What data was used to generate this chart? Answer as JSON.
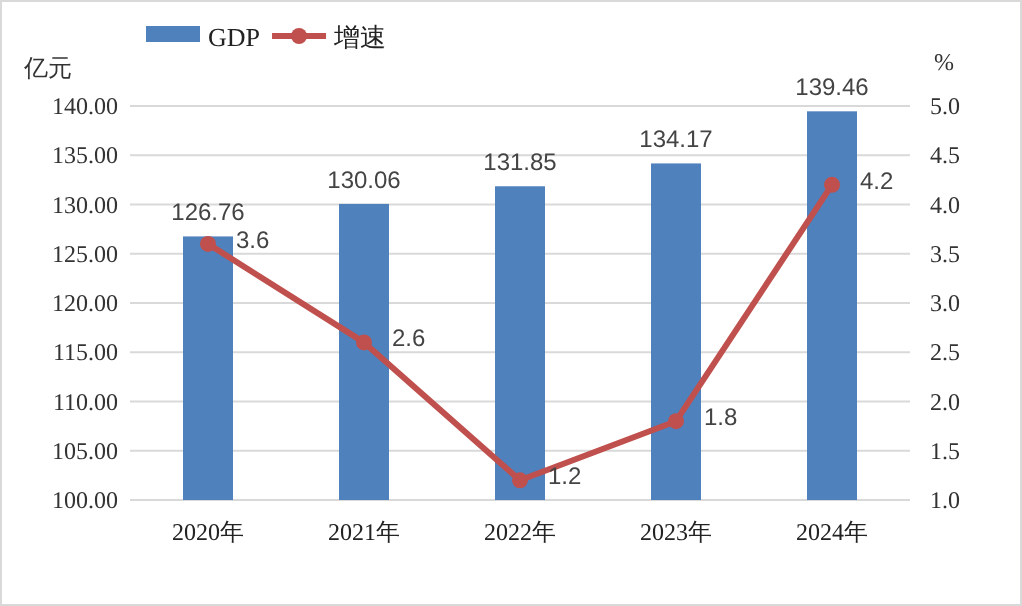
{
  "chart_data": {
    "type": "bar",
    "ylabel": "亿元",
    "y2label": "%",
    "categories": [
      "2020年",
      "2021年",
      "2022年",
      "2023年",
      "2024年"
    ],
    "series": [
      {
        "name": "GDP",
        "color": "#4f81bd",
        "values": [
          126.76,
          130.06,
          131.85,
          134.17,
          139.46
        ]
      },
      {
        "name": "增速",
        "type": "line",
        "axis": "y2",
        "color": "#c0504d",
        "marker": "circle",
        "values": [
          3.6,
          2.6,
          1.2,
          1.8,
          4.2
        ]
      }
    ],
    "data_labels": true,
    "legend": "top left",
    "grid": "y",
    "ylim": [
      100,
      140
    ],
    "yticks": [
      {
        "value": 100,
        "label": "100.00"
      },
      {
        "value": 105,
        "label": "105.00"
      },
      {
        "value": 110,
        "label": "110.00"
      },
      {
        "value": 115,
        "label": "115.00"
      },
      {
        "value": 120,
        "label": "120.00"
      },
      {
        "value": 125,
        "label": "125.00"
      },
      {
        "value": 130,
        "label": "130.00"
      },
      {
        "value": 135,
        "label": "135.00"
      },
      {
        "value": 140,
        "label": "140.00"
      }
    ],
    "y2lim": [
      1,
      5
    ],
    "y2ticks": [
      {
        "value": 1,
        "label": "1.0"
      },
      {
        "value": 1.5,
        "label": "1.5"
      },
      {
        "value": 2,
        "label": "2.0"
      },
      {
        "value": 2.5,
        "label": "2.5"
      },
      {
        "value": 3,
        "label": "3.0"
      },
      {
        "value": 3.5,
        "label": "3.5"
      },
      {
        "value": 4,
        "label": "4.0"
      },
      {
        "value": 4.5,
        "label": "4.5"
      },
      {
        "value": 5,
        "label": "5.0"
      }
    ]
  }
}
